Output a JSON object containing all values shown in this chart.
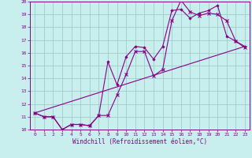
{
  "xlabel": "Windchill (Refroidissement éolien,°C)",
  "bg_color": "#c8eeee",
  "grid_color": "#a0cccc",
  "line_color": "#880088",
  "xlim": [
    -0.5,
    23.5
  ],
  "ylim": [
    10,
    20
  ],
  "xticks": [
    0,
    1,
    2,
    3,
    4,
    5,
    6,
    7,
    8,
    9,
    10,
    11,
    12,
    13,
    14,
    15,
    16,
    17,
    18,
    19,
    20,
    21,
    22,
    23
  ],
  "yticks": [
    10,
    11,
    12,
    13,
    14,
    15,
    16,
    17,
    18,
    19,
    20
  ],
  "line1_x": [
    0,
    1,
    2,
    3,
    4,
    5,
    6,
    7,
    8,
    9,
    10,
    11,
    12,
    13,
    14,
    15,
    16,
    17,
    18,
    19,
    20,
    21,
    22,
    23
  ],
  "line1_y": [
    11.3,
    11.0,
    11.0,
    10.0,
    10.4,
    10.4,
    10.3,
    11.1,
    11.1,
    12.7,
    14.3,
    16.1,
    16.1,
    14.2,
    14.7,
    18.5,
    20.1,
    19.2,
    18.9,
    19.1,
    19.0,
    18.5,
    16.9,
    16.4
  ],
  "line2_x": [
    0,
    1,
    2,
    3,
    4,
    5,
    6,
    7,
    8,
    9,
    10,
    11,
    12,
    13,
    14,
    15,
    16,
    17,
    18,
    19,
    20,
    21,
    22,
    23
  ],
  "line2_y": [
    11.3,
    11.0,
    11.0,
    10.0,
    10.4,
    10.4,
    10.3,
    11.1,
    15.3,
    13.5,
    15.7,
    16.5,
    16.4,
    15.5,
    16.5,
    19.3,
    19.4,
    18.7,
    19.1,
    19.3,
    19.7,
    17.3,
    16.9,
    16.5
  ],
  "line3_x": [
    0,
    23
  ],
  "line3_y": [
    11.3,
    16.5
  ],
  "tick_fontsize": 4.5,
  "xlabel_fontsize": 5.5
}
